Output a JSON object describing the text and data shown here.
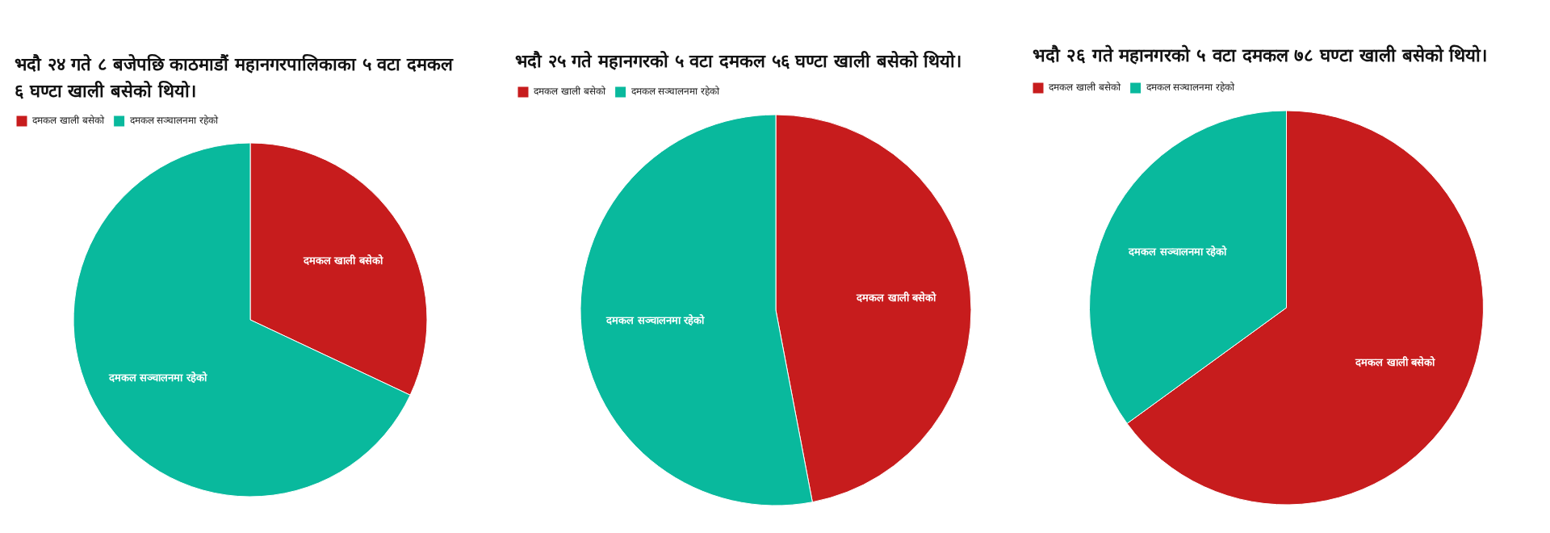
{
  "chart_data": [
    {
      "type": "pie",
      "title": "भदौ २४ गते ८ बजेपछि काठमाडौं महानगरपालिकाका ५ वटा दमकल ६ घण्टा खाली बसेको थियो।",
      "categories": [
        "दमकल खाली बसेको",
        "दमकल सञ्चालनमा रहेको"
      ],
      "values": [
        32,
        68
      ],
      "colors": [
        "#c71c1d",
        "#09b99d"
      ],
      "legend": "top left"
    },
    {
      "type": "pie",
      "title": "भदौ २५ गते महानगरको ५ वटा दमकल ५६ घण्टा खाली बसेको थियो।",
      "categories": [
        "दमकल खाली बसेको",
        "दमकल सञ्चालनमा रहेको"
      ],
      "values": [
        47,
        53
      ],
      "colors": [
        "#c71c1d",
        "#09b99d"
      ],
      "legend": "top left"
    },
    {
      "type": "pie",
      "title": "भदौ २६ गते महानगरको ५ वटा दमकल ७८ घण्टा खाली बसेको थियो।",
      "categories": [
        "दमकल खाली बसेको",
        "दमकल सञ्चालनमा रहेको"
      ],
      "values": [
        65,
        35
      ],
      "colors": [
        "#c71c1d",
        "#09b99d"
      ],
      "legend": "top left"
    }
  ]
}
